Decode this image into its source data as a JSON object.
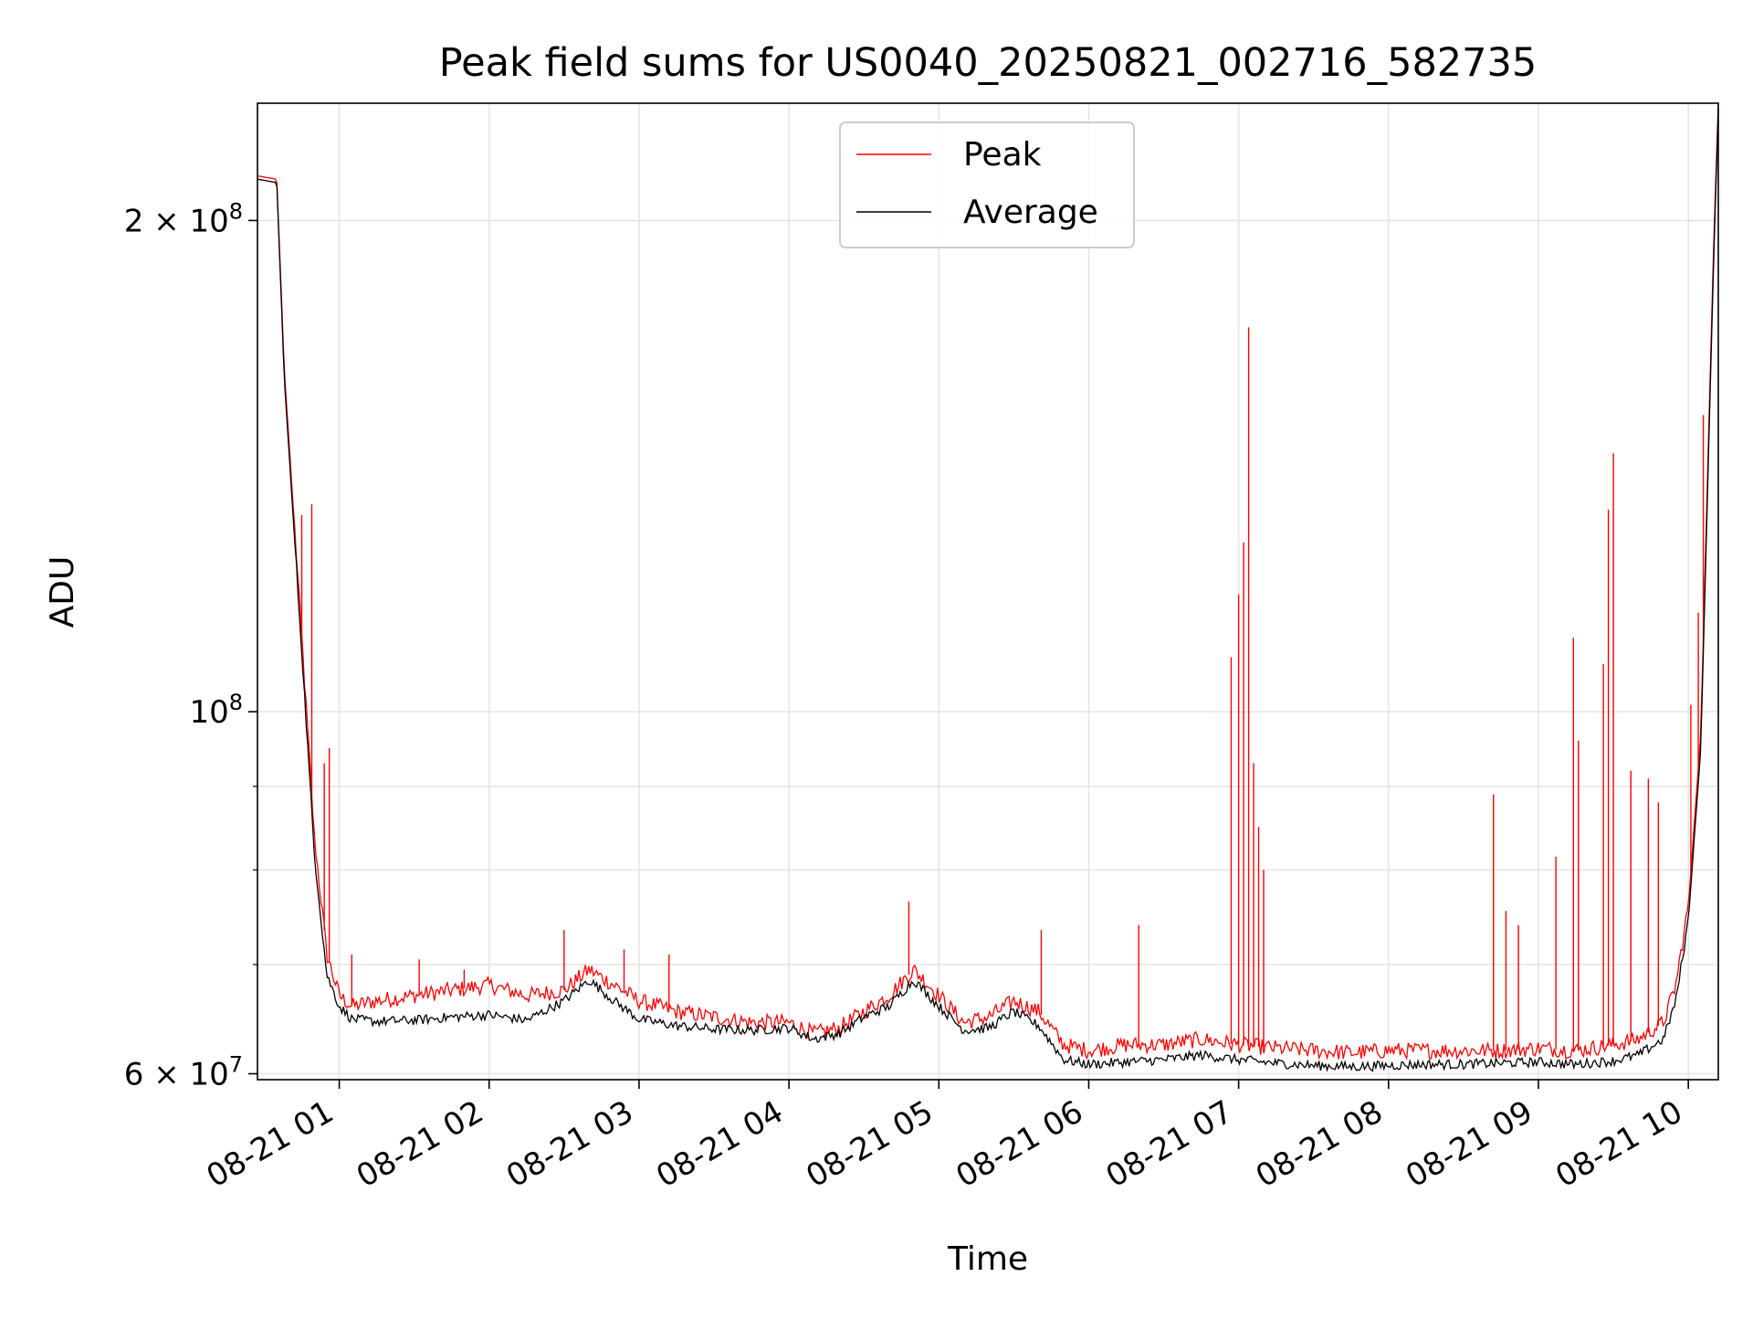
{
  "chart_data": {
    "type": "line",
    "title": "Peak field sums for US0040_20250821_002716_582735",
    "xlabel": "Time",
    "ylabel": "ADU",
    "x_type": "datetime",
    "x_range": [
      "2025-08-21T00:27:16",
      "2025-08-21T10:12:00"
    ],
    "x_ticks": [
      "2025-08-21T01:00",
      "2025-08-21T02:00",
      "2025-08-21T03:00",
      "2025-08-21T04:00",
      "2025-08-21T05:00",
      "2025-08-21T06:00",
      "2025-08-21T07:00",
      "2025-08-21T08:00",
      "2025-08-21T09:00",
      "2025-08-21T10:00"
    ],
    "x_tick_labels": [
      "08-21 01",
      "08-21 02",
      "08-21 03",
      "08-21 04",
      "08-21 05",
      "08-21 06",
      "08-21 07",
      "08-21 08",
      "08-21 09",
      "08-21 10"
    ],
    "y_scale": "log",
    "ylim": [
      59500000,
      236000000
    ],
    "y_ticks": [
      60000000,
      100000000,
      200000000
    ],
    "y_tick_labels": [
      {
        "base": "6 × 10",
        "exp": "7"
      },
      {
        "base": "10",
        "exp": "8"
      },
      {
        "base": "2 × 10",
        "exp": "8"
      }
    ],
    "y_minor_ticks": [
      70000000,
      80000000,
      90000000
    ],
    "grid": true,
    "legend_position": "upper center",
    "series": [
      {
        "name": "Peak",
        "color": "#ff0000",
        "x": [
          "00:27:16",
          "00:35",
          "00:38",
          "00:45",
          "00:50",
          "00:55",
          "01:00",
          "01:05",
          "01:15",
          "01:30",
          "01:45",
          "02:00",
          "02:15",
          "02:30",
          "02:40",
          "02:50",
          "03:00",
          "03:15",
          "03:30",
          "03:45",
          "04:00",
          "04:10",
          "04:20",
          "04:30",
          "04:40",
          "04:50",
          "05:00",
          "05:10",
          "05:20",
          "05:30",
          "05:40",
          "05:50",
          "06:00",
          "06:15",
          "06:30",
          "06:45",
          "07:00",
          "07:15",
          "07:30",
          "07:45",
          "08:00",
          "08:15",
          "08:30",
          "08:45",
          "09:00",
          "09:15",
          "09:30",
          "09:40",
          "09:50",
          "09:55",
          "10:00",
          "10:05",
          "10:10",
          "10:12"
        ],
        "y": [
          213000000,
          212000000,
          162000000,
          111000000,
          84000000,
          71000000,
          67000000,
          66000000,
          66500000,
          67000000,
          67500000,
          68000000,
          67000000,
          67500000,
          69500000,
          68000000,
          66500000,
          65500000,
          65000000,
          64500000,
          64500000,
          63500000,
          64000000,
          65500000,
          67000000,
          69500000,
          67000000,
          64500000,
          65000000,
          66500000,
          65500000,
          62500000,
          62000000,
          62500000,
          62500000,
          63000000,
          62500000,
          62200000,
          62000000,
          61800000,
          62000000,
          62000000,
          62000000,
          62000000,
          62200000,
          62000000,
          62500000,
          63000000,
          64500000,
          68000000,
          76000000,
          97000000,
          190000000,
          236000000
        ],
        "spikes": [
          {
            "x": "00:45",
            "y": 132000000
          },
          {
            "x": "00:49",
            "y": 134000000
          },
          {
            "x": "00:54",
            "y": 93000000
          },
          {
            "x": "00:56",
            "y": 95000000
          },
          {
            "x": "01:05",
            "y": 71000000
          },
          {
            "x": "01:32",
            "y": 70500000
          },
          {
            "x": "01:50",
            "y": 69500000
          },
          {
            "x": "02:30",
            "y": 73500000
          },
          {
            "x": "02:54",
            "y": 71500000
          },
          {
            "x": "03:12",
            "y": 71000000
          },
          {
            "x": "04:48",
            "y": 76500000
          },
          {
            "x": "05:41",
            "y": 73500000
          },
          {
            "x": "06:20",
            "y": 74000000
          },
          {
            "x": "06:57",
            "y": 108000000
          },
          {
            "x": "07:00",
            "y": 118000000
          },
          {
            "x": "07:02",
            "y": 127000000
          },
          {
            "x": "07:04",
            "y": 172000000
          },
          {
            "x": "07:06",
            "y": 93000000
          },
          {
            "x": "07:08",
            "y": 85000000
          },
          {
            "x": "07:10",
            "y": 80000000
          },
          {
            "x": "08:42",
            "y": 89000000
          },
          {
            "x": "08:47",
            "y": 75500000
          },
          {
            "x": "08:52",
            "y": 74000000
          },
          {
            "x": "09:07",
            "y": 81500000
          },
          {
            "x": "09:14",
            "y": 111000000
          },
          {
            "x": "09:16",
            "y": 96000000
          },
          {
            "x": "09:26",
            "y": 107000000
          },
          {
            "x": "09:28",
            "y": 133000000
          },
          {
            "x": "09:30",
            "y": 144000000
          },
          {
            "x": "09:37",
            "y": 92000000
          },
          {
            "x": "09:44",
            "y": 91000000
          },
          {
            "x": "09:48",
            "y": 88000000
          },
          {
            "x": "10:01",
            "y": 101000000
          },
          {
            "x": "10:04",
            "y": 115000000
          },
          {
            "x": "10:06",
            "y": 152000000
          },
          {
            "x": "10:09",
            "y": 166000000
          }
        ]
      },
      {
        "name": "Average",
        "color": "#000000",
        "x": [
          "00:27:16",
          "00:35",
          "00:38",
          "00:45",
          "00:50",
          "00:55",
          "01:00",
          "01:05",
          "01:15",
          "01:30",
          "01:45",
          "02:00",
          "02:15",
          "02:30",
          "02:40",
          "02:50",
          "03:00",
          "03:15",
          "03:30",
          "03:45",
          "04:00",
          "04:10",
          "04:20",
          "04:30",
          "04:40",
          "04:50",
          "05:00",
          "05:10",
          "05:20",
          "05:30",
          "05:40",
          "05:50",
          "06:00",
          "06:15",
          "06:30",
          "06:45",
          "07:00",
          "07:15",
          "07:30",
          "07:45",
          "08:00",
          "08:15",
          "08:30",
          "08:45",
          "09:00",
          "09:15",
          "09:30",
          "09:40",
          "09:50",
          "09:55",
          "10:00",
          "10:05",
          "10:10",
          "10:12"
        ],
        "y": [
          212000000,
          211000000,
          160000000,
          109000000,
          82000000,
          69000000,
          66000000,
          64800000,
          64600000,
          64700000,
          65000000,
          65200000,
          64700000,
          66500000,
          68500000,
          66500000,
          64800000,
          64200000,
          63900000,
          63800000,
          64000000,
          63000000,
          63500000,
          65000000,
          66000000,
          68500000,
          66000000,
          63800000,
          64000000,
          65500000,
          64200000,
          61200000,
          60800000,
          61000000,
          61200000,
          61600000,
          61200000,
          60900000,
          60700000,
          60600000,
          60700000,
          60800000,
          60800000,
          60900000,
          61000000,
          60800000,
          61100000,
          61600000,
          63000000,
          66500000,
          74500000,
          95000000,
          186000000,
          234000000
        ]
      }
    ]
  }
}
